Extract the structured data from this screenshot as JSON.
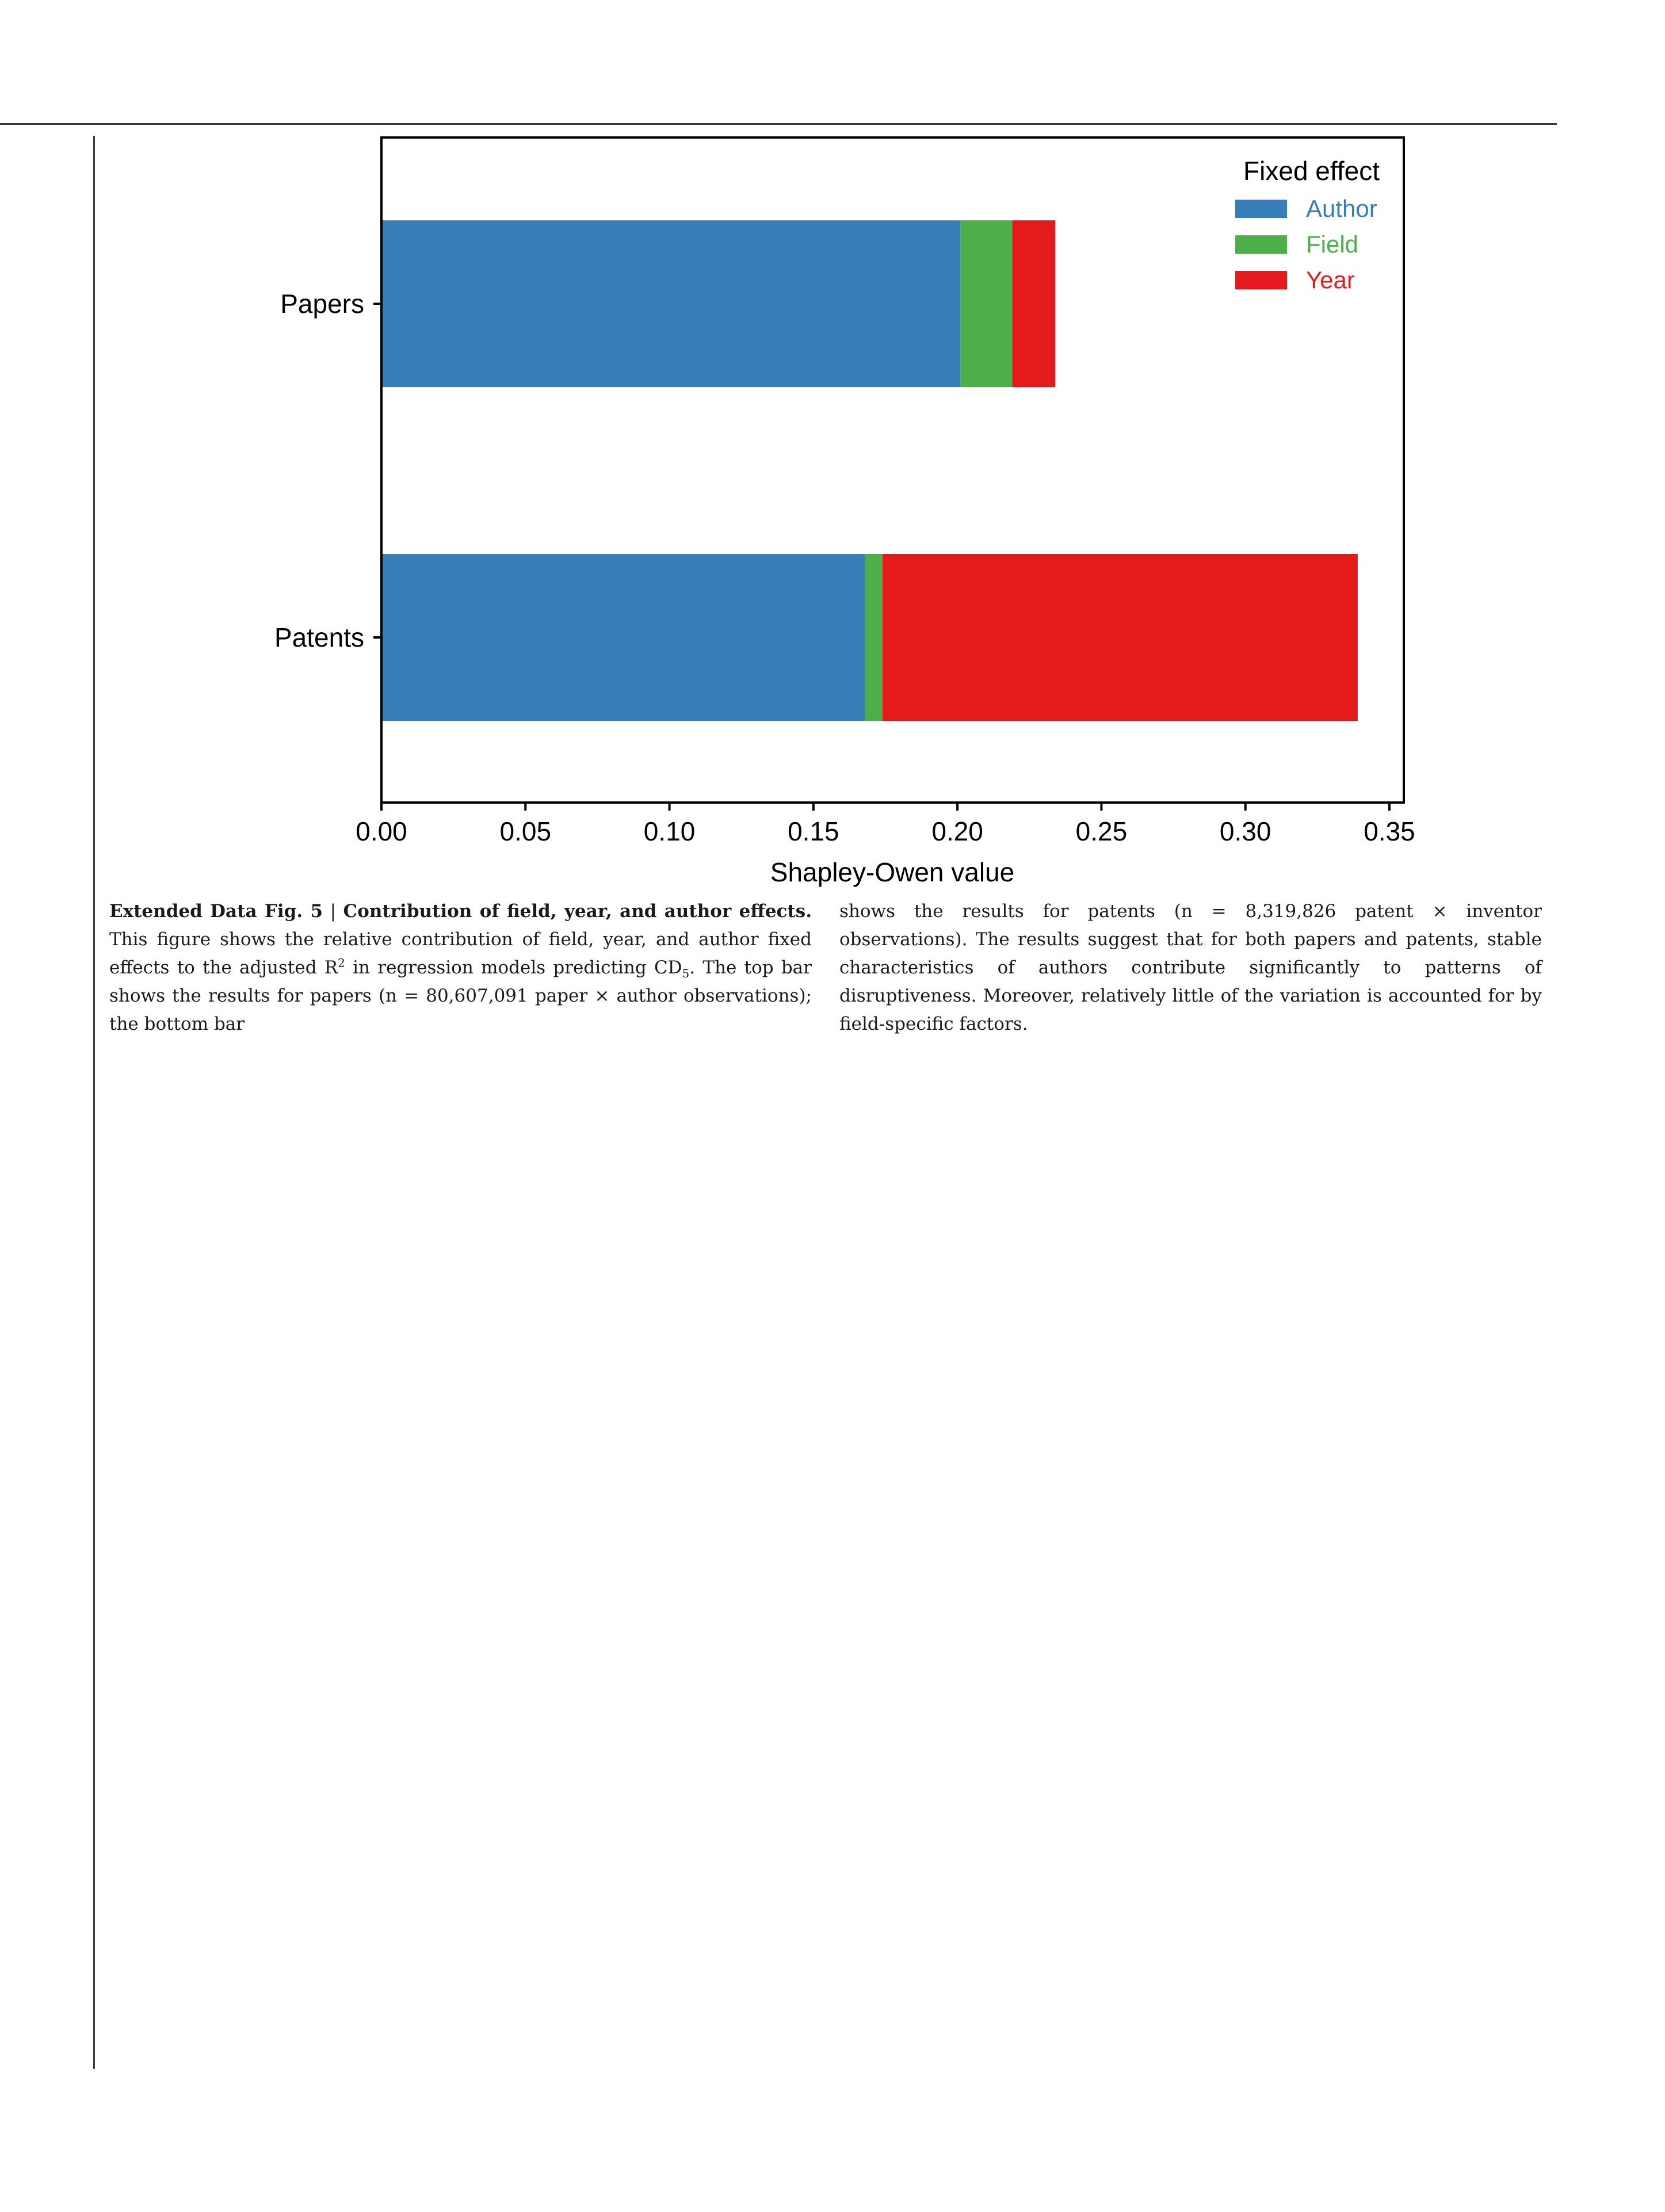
{
  "chart_data": {
    "type": "bar",
    "orientation": "horizontal",
    "stacked": true,
    "categories": [
      "Papers",
      "Patents"
    ],
    "series": [
      {
        "name": "Author",
        "values": [
          0.201,
          0.168
        ],
        "color": "#377eb8"
      },
      {
        "name": "Field",
        "values": [
          0.018,
          0.006
        ],
        "color": "#4daf4a"
      },
      {
        "name": "Year",
        "values": [
          0.015,
          0.165
        ],
        "color": "#e41a1c"
      }
    ],
    "xlabel": "Shapley-Owen value",
    "xlim": [
      0,
      0.355
    ],
    "xticks": [
      "0.00",
      "0.05",
      "0.10",
      "0.15",
      "0.20",
      "0.25",
      "0.30",
      "0.35"
    ],
    "legend": {
      "title": "Fixed effect",
      "position": "top-right"
    },
    "grid": false
  },
  "caption": {
    "label": "Extended Data Fig. 5",
    "separator": "|",
    "title": "Contribution of field, year, and author effects.",
    "part1": " This figure shows the relative contribution of field, year, and author fixed effects to the adjusted R",
    "sup": "2",
    "part2": " in regression models predicting CD",
    "sub": "5",
    "part3": ". The top bar shows the results for papers (n = 80,607,091 paper × author observations); the bottom bar",
    "col2": "shows the results for patents (n = 8,319,826 patent × inventor observations). The results suggest that for both papers and patents, stable characteristics of authors contribute significantly to patterns of disruptiveness. Moreover, relatively little of the variation is accounted for by field-specific factors."
  }
}
